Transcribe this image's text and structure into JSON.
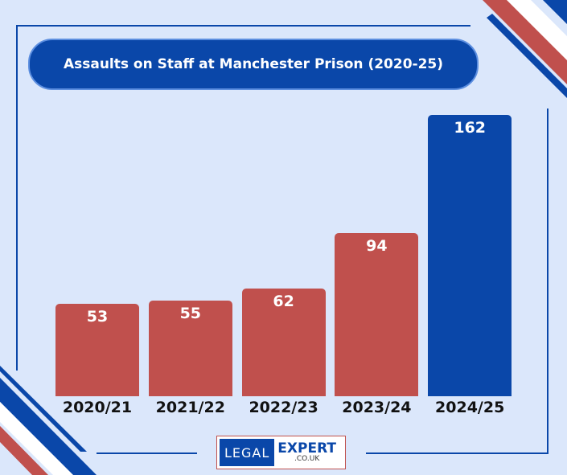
{
  "colors": {
    "blue": "#0a47a9",
    "red": "#c0504d",
    "bg": "#dbe7fb"
  },
  "logo": {
    "left": "LEGAL",
    "right": "EXPERT",
    "domain": ".CO.UK"
  },
  "chart_data": {
    "type": "bar",
    "title": "Assaults on Staff at Manchester Prison (2020-25)",
    "categories": [
      "2020/21",
      "2021/22",
      "2022/23",
      "2023/24",
      "2024/25"
    ],
    "values": [
      53,
      55,
      62,
      94,
      162
    ],
    "bar_colors": [
      "#c0504d",
      "#c0504d",
      "#c0504d",
      "#c0504d",
      "#0a47a9"
    ],
    "xlabel": "",
    "ylabel": "",
    "ylim": [
      0,
      162
    ],
    "grid": false,
    "legend": "none"
  }
}
